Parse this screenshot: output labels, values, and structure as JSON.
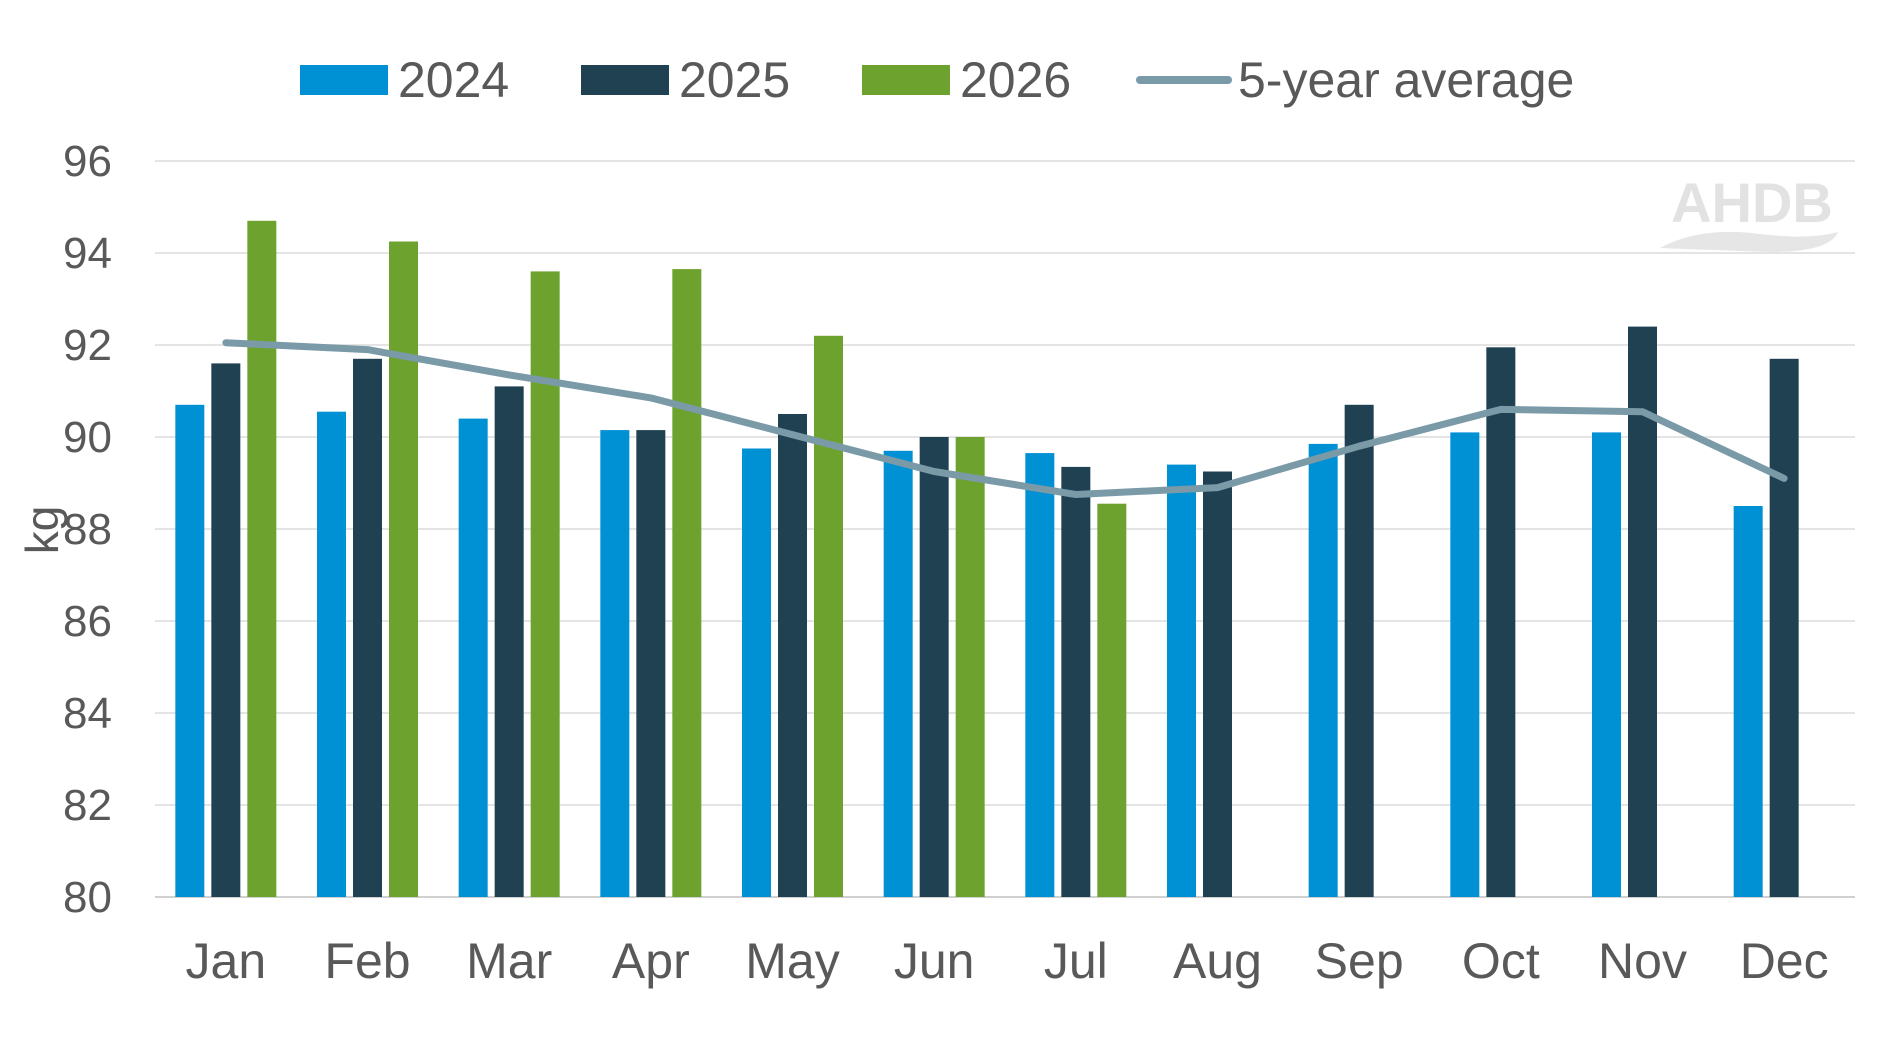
{
  "chart_data": {
    "type": "bar",
    "title": "",
    "xlabel": "",
    "ylabel": "kg",
    "ylim": [
      80,
      96
    ],
    "yticks": [
      80,
      82,
      84,
      86,
      88,
      90,
      92,
      94,
      96
    ],
    "grid": true,
    "legend_position": "top",
    "categories": [
      "Jan",
      "Feb",
      "Mar",
      "Apr",
      "May",
      "Jun",
      "Jul",
      "Aug",
      "Sep",
      "Oct",
      "Nov",
      "Dec"
    ],
    "series": [
      {
        "name": "2024",
        "kind": "bar",
        "color": "#0090D4",
        "values": [
          90.7,
          90.55,
          90.4,
          90.15,
          89.75,
          89.7,
          89.65,
          89.4,
          89.85,
          90.1,
          90.1,
          88.5
        ]
      },
      {
        "name": "2025",
        "kind": "bar",
        "color": "#1F4152",
        "values": [
          91.6,
          91.7,
          91.1,
          90.15,
          90.5,
          90.0,
          89.35,
          89.25,
          90.7,
          91.95,
          92.4,
          91.7
        ]
      },
      {
        "name": "2026",
        "kind": "bar",
        "color": "#6EA22E",
        "values": [
          94.7,
          94.25,
          93.6,
          93.65,
          92.2,
          90.0,
          88.55,
          null,
          null,
          null,
          null,
          null
        ]
      },
      {
        "name": "5-year average",
        "kind": "line",
        "color": "#7A9AA8",
        "values": [
          92.05,
          91.9,
          91.35,
          90.85,
          90.05,
          89.25,
          88.75,
          88.9,
          89.8,
          90.6,
          90.55,
          89.1
        ]
      }
    ]
  },
  "watermark": {
    "text": "AHDB"
  }
}
